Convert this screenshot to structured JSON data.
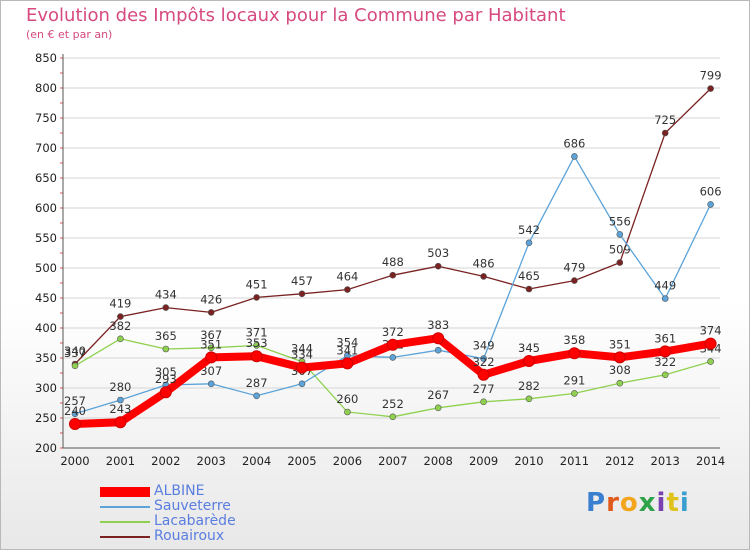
{
  "header": {
    "title": "Evolution des Impôts locaux pour la Commune par Habitant",
    "subtitle": "(en € et par an)"
  },
  "logo": {
    "text": "Proxiti",
    "letter_colors": [
      "#3a7fd0",
      "#e05a1c",
      "#f2a51d",
      "#2ea34a",
      "#7a3fb0",
      "#e0c21c",
      "#3a9fd0"
    ]
  },
  "chart_data": {
    "type": "line",
    "x": [
      "2000",
      "2001",
      "2002",
      "2003",
      "2004",
      "2005",
      "2006",
      "2007",
      "2008",
      "2009",
      "2010",
      "2011",
      "2012",
      "2013",
      "2014"
    ],
    "ylim": [
      200,
      850
    ],
    "yticks": [
      200,
      250,
      300,
      350,
      400,
      450,
      500,
      550,
      600,
      650,
      700,
      750,
      800,
      850
    ],
    "grid": true,
    "legend_position": "bottom-left",
    "series": [
      {
        "name": "Rouairoux",
        "color": "#7a2222",
        "values": [
          340,
          419,
          434,
          426,
          451,
          457,
          464,
          488,
          503,
          486,
          465,
          479,
          509,
          725,
          799
        ],
        "labels": [
          "340",
          "419",
          "434",
          "426",
          "451",
          "457",
          "464",
          "488",
          "503",
          "486",
          "465",
          "479",
          "509",
          "725",
          "799"
        ]
      },
      {
        "name": "Lacabarède",
        "color": "#8fd14f",
        "values": [
          337,
          382,
          365,
          367,
          371,
          344,
          260,
          252,
          267,
          277,
          282,
          291,
          308,
          322,
          344
        ],
        "labels": [
          "337",
          "382",
          "365",
          "367",
          "371",
          "344",
          "260",
          "252",
          "267",
          "277",
          "282",
          "291",
          "308",
          "322",
          "344"
        ]
      },
      {
        "name": "Sauveterre",
        "color": "#5ba3d9",
        "values": [
          257,
          280,
          305,
          307,
          287,
          307,
          354,
          351,
          363,
          349,
          542,
          686,
          556,
          449,
          606
        ],
        "labels": [
          "257",
          "280",
          "305",
          "307",
          "287",
          "307",
          "354",
          "351",
          "",
          "349",
          "542",
          "686",
          "556",
          "449",
          "606"
        ]
      },
      {
        "name": "ALBINE",
        "color": "#ff0000",
        "values": [
          240,
          243,
          293,
          351,
          353,
          334,
          341,
          372,
          383,
          322,
          345,
          358,
          351,
          361,
          374
        ],
        "labels": [
          "240",
          "243",
          "293",
          "351",
          "353",
          "334",
          "341",
          "372",
          "383",
          "322",
          "345",
          "358",
          "351",
          "361",
          "374"
        ]
      }
    ],
    "legend": [
      "ALBINE",
      "Sauveterre",
      "Lacabarède",
      "Rouairoux"
    ]
  }
}
